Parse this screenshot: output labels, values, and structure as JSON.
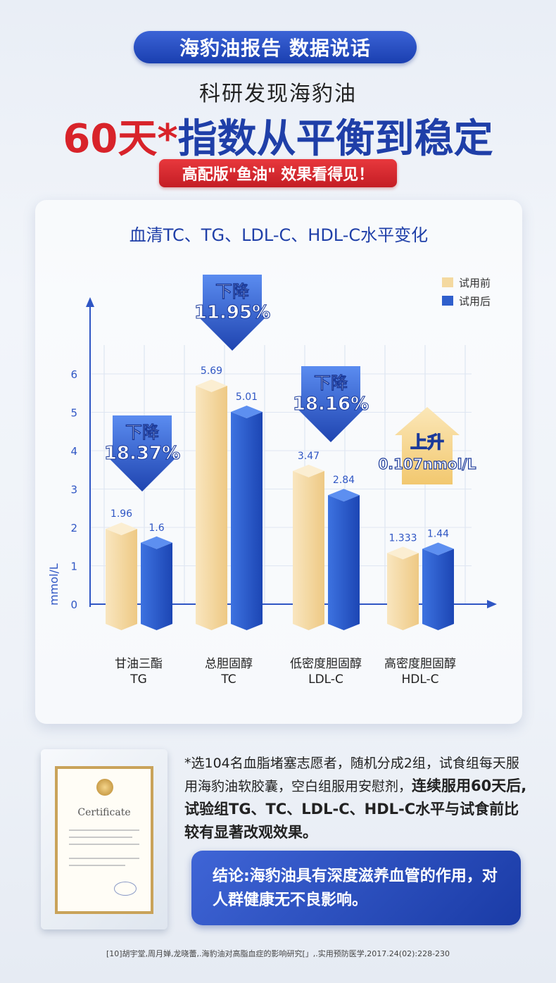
{
  "banner": "海豹油报告 数据说话",
  "subtitle": "科研发现海豹油",
  "headline": {
    "red": "60天*",
    "blue": "指数从平衡到稳定"
  },
  "pill": "高配版\"鱼油\" 效果看得见！",
  "chart_data": {
    "type": "bar",
    "title": "血清TC、TG、LDL-C、HDL-C水平变化",
    "ylabel": "mmol/L",
    "ylim": [
      0,
      6
    ],
    "yticks": [
      "0",
      "1",
      "2",
      "3",
      "4",
      "5",
      "6"
    ],
    "categories": [
      {
        "name": "甘油三酯",
        "code": "TG"
      },
      {
        "name": "总胆固醇",
        "code": "TC"
      },
      {
        "name": "低密度胆固醇",
        "code": "LDL-C"
      },
      {
        "name": "高密度胆固醇",
        "code": "HDL-C"
      }
    ],
    "series": [
      {
        "name": "试用前",
        "color": "#f4d9a0",
        "values": [
          1.96,
          5.69,
          3.47,
          1.333
        ],
        "labels": [
          "1.96",
          "5.69",
          "3.47",
          "1.333"
        ]
      },
      {
        "name": "试用后",
        "color": "#2f5fcc",
        "values": [
          1.6,
          5.01,
          2.84,
          1.44
        ],
        "labels": [
          "1.6",
          "5.01",
          "2.84",
          "1.44"
        ]
      }
    ],
    "annotations": [
      {
        "direction": "down",
        "line1": "下降",
        "line2": "18.37%",
        "category": "TG"
      },
      {
        "direction": "down",
        "line1": "下降",
        "line2": "11.95%",
        "category": "TC"
      },
      {
        "direction": "down",
        "line1": "下降",
        "line2": "18.16%",
        "category": "LDL-C"
      },
      {
        "direction": "up",
        "line1": "上升",
        "line2": "0.107nmol/L",
        "category": "HDL-C"
      }
    ],
    "legend_position": "top-right",
    "grid": true
  },
  "certificate": {
    "title": "Certificate"
  },
  "note": {
    "part1": "*选104名血脂堵塞志愿者，随机分成2组，试食组每天服用海豹油软胶囊，空白组服用安慰剂，",
    "part2": "连续服用60天后,试验组TG、TC、LDL-C、HDL-C水平与试食前比较有显著改观效果。"
  },
  "conclusion": "结论:海豹油具有深度滋养血管的作用，对人群健康无不良影响。",
  "reference": "[10]胡宇堂,周月婵,龙晓蕾,.海豹油对高脂血症的影响研究[」,.实用预防医学,2017.24(02):228-230"
}
